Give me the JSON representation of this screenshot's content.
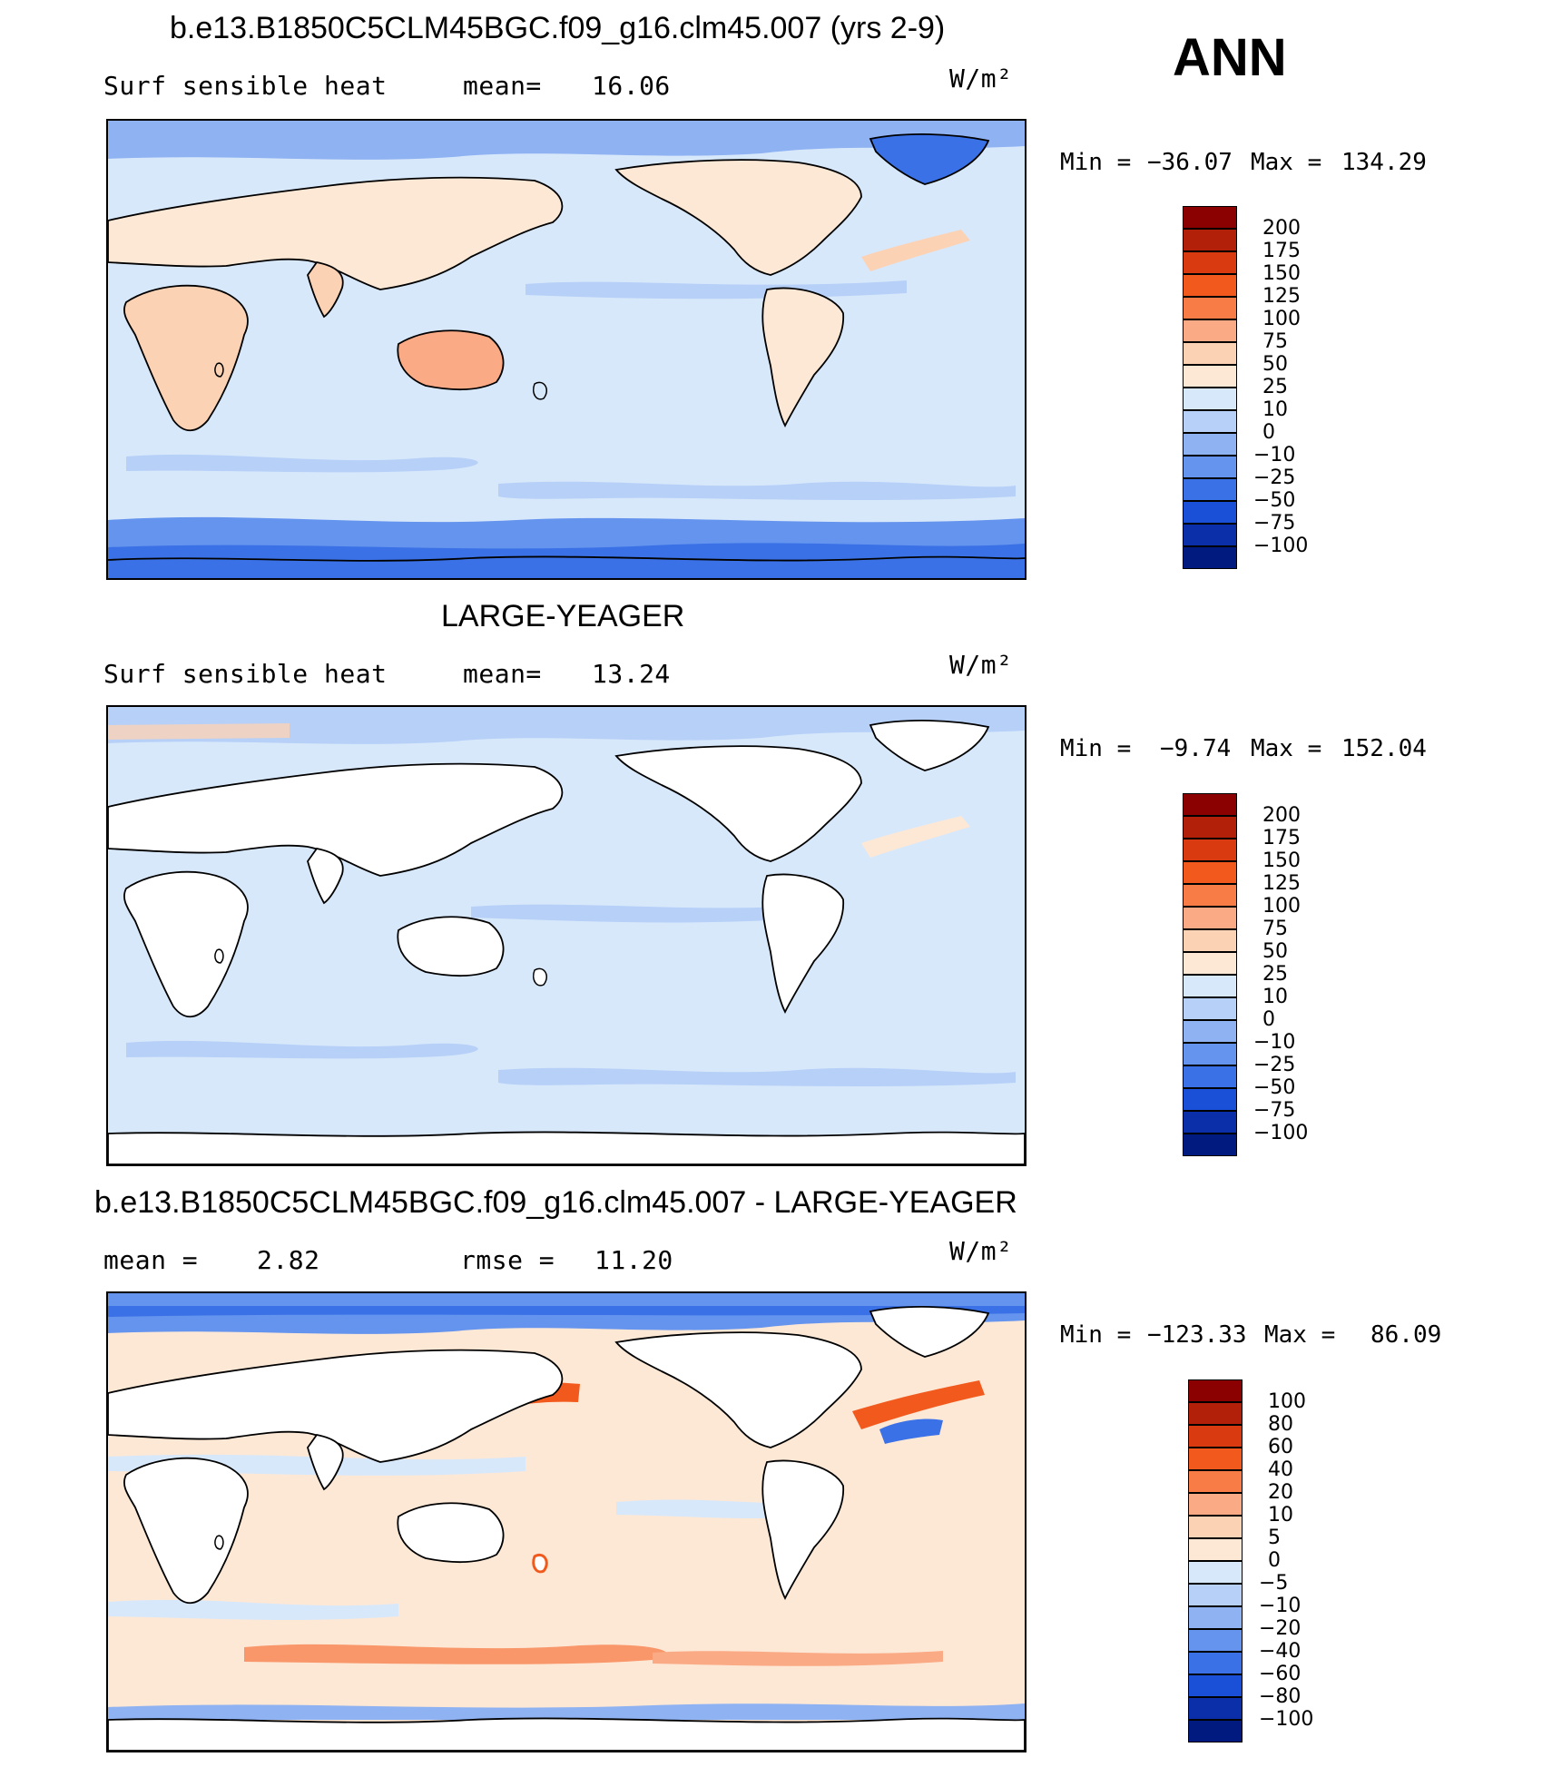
{
  "season": "ANN",
  "panels": [
    {
      "title": "b.e13.B1850C5CLM45BGC.f09_g16.clm45.007 (yrs 2-9)",
      "left_label": "Surf sensible heat",
      "mid_label": "mean=",
      "mid_value": "16.06",
      "units": "W/m²",
      "min_label": "Min =",
      "min_value": "−36.07",
      "max_label": "Max =",
      "max_value": "134.29",
      "colorbar": {
        "labels": [
          "200",
          "175",
          "150",
          "125",
          "100",
          "75",
          "50",
          "25",
          "10",
          "0",
          "−10",
          "−25",
          "−50",
          "−75",
          "−100"
        ],
        "colors": [
          "#8b0000",
          "#b3200a",
          "#d93a0f",
          "#f25a1d",
          "#f87c45",
          "#fbaa86",
          "#fcd2b5",
          "#fde8d6",
          "#d8e8fb",
          "#b6d0f8",
          "#8fb2f3",
          "#6594ee",
          "#3a71e6",
          "#1a4fd8",
          "#0b2fa9",
          "#001a80"
        ]
      }
    },
    {
      "title": "LARGE-YEAGER",
      "left_label": "Surf sensible heat",
      "mid_label": "mean=",
      "mid_value": "13.24",
      "units": "W/m²",
      "min_label": "Min =",
      "min_value": "−9.74",
      "max_label": "Max =",
      "max_value": "152.04",
      "colorbar": {
        "labels": [
          "200",
          "175",
          "150",
          "125",
          "100",
          "75",
          "50",
          "25",
          "10",
          "0",
          "−10",
          "−25",
          "−50",
          "−75",
          "−100"
        ],
        "colors": [
          "#8b0000",
          "#b3200a",
          "#d93a0f",
          "#f25a1d",
          "#f87c45",
          "#fbaa86",
          "#fcd2b5",
          "#fde8d6",
          "#d8e8fb",
          "#b6d0f8",
          "#8fb2f3",
          "#6594ee",
          "#3a71e6",
          "#1a4fd8",
          "#0b2fa9",
          "#001a80"
        ]
      }
    },
    {
      "title": "b.e13.B1850C5CLM45BGC.f09_g16.clm45.007 - LARGE-YEAGER",
      "left_label": "mean =",
      "left_value": "2.82",
      "mid_label": "rmse =",
      "mid_value": "11.20",
      "units": "W/m²",
      "min_label": "Min =",
      "min_value": "−123.33",
      "max_label": "Max =",
      "max_value": "86.09",
      "colorbar": {
        "labels": [
          "100",
          "80",
          "60",
          "40",
          "20",
          "10",
          "5",
          "0",
          "−5",
          "−10",
          "−20",
          "−40",
          "−60",
          "−80",
          "−100"
        ],
        "colors": [
          "#8b0000",
          "#b3200a",
          "#d93a0f",
          "#f25a1d",
          "#f87c45",
          "#fbaa86",
          "#fcd2b5",
          "#fde8d6",
          "#d8e8fb",
          "#b6d0f8",
          "#8fb2f3",
          "#6594ee",
          "#3a71e6",
          "#1a4fd8",
          "#0b2fa9",
          "#001a80"
        ]
      }
    }
  ]
}
